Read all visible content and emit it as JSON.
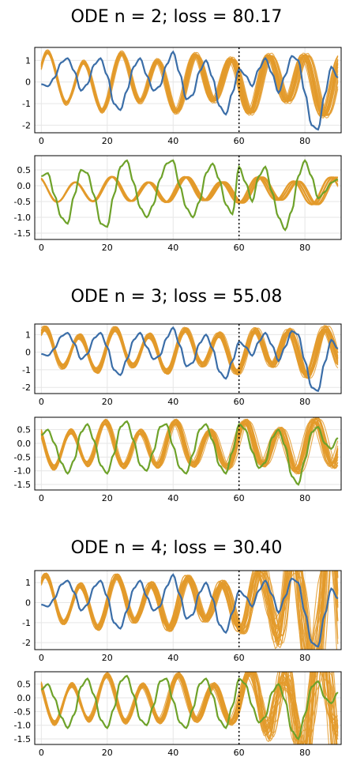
{
  "chart_data": [
    {
      "title": "ODE n = 2; loss = 80.17",
      "subplots": [
        {
          "type": "line",
          "xlim": [
            -2,
            91
          ],
          "ylim": [
            -2.35,
            1.6
          ],
          "xticks": [
            0,
            20,
            40,
            60,
            80
          ],
          "yticks": [
            -2,
            -1,
            0,
            1
          ],
          "vline": 60,
          "target": {
            "color": "#3b6ea8",
            "x": [
              0,
              2,
              4,
              6,
              8,
              10,
              12,
              14,
              16,
              18,
              20,
              22,
              24,
              26,
              28,
              30,
              32,
              34,
              36,
              38,
              40,
              42,
              44,
              46,
              48,
              50,
              52,
              54,
              56,
              58,
              60,
              62,
              64,
              66,
              68,
              70,
              72,
              74,
              76,
              78,
              80,
              82,
              84,
              86,
              88,
              90
            ],
            "y": [
              -0.1,
              -0.2,
              0.2,
              0.9,
              1.1,
              0.5,
              -0.4,
              -0.1,
              0.8,
              1.1,
              0.3,
              -1.0,
              -1.3,
              -0.4,
              0.7,
              1.1,
              0.3,
              -0.4,
              -0.2,
              0.8,
              1.4,
              0.4,
              -0.8,
              -0.6,
              0.5,
              1.0,
              0.2,
              -1.1,
              -1.5,
              -0.5,
              0.6,
              0.3,
              -0.2,
              0.6,
              1.1,
              0.4,
              -0.5,
              0.3,
              1.2,
              1.0,
              -0.5,
              -2.0,
              -2.2,
              -0.6,
              0.7,
              0.2
            ]
          },
          "predictions": {
            "color": "#e39a2a",
            "count": 25,
            "amplitude": 1.15,
            "period": 11.2,
            "phase": 0.55,
            "damping": 0.0,
            "offset": 0.0
          },
          "prediction_spread": 0.18
        },
        {
          "type": "line",
          "xlim": [
            -2,
            91
          ],
          "ylim": [
            -1.7,
            0.95
          ],
          "xticks": [
            0,
            20,
            40,
            60,
            80
          ],
          "yticks": [
            -1.5,
            -1.0,
            -0.5,
            0.0,
            0.5
          ],
          "vline": 60,
          "target": {
            "color": "#6ea22a",
            "x": [
              0,
              2,
              4,
              6,
              8,
              10,
              12,
              14,
              16,
              18,
              20,
              22,
              24,
              26,
              28,
              30,
              32,
              34,
              36,
              38,
              40,
              42,
              44,
              46,
              48,
              50,
              52,
              54,
              56,
              58,
              60,
              62,
              64,
              66,
              68,
              70,
              72,
              74,
              76,
              78,
              80,
              82,
              84,
              86,
              88,
              90
            ],
            "y": [
              0.3,
              0.4,
              -0.3,
              -1.0,
              -1.2,
              -0.3,
              0.5,
              0.4,
              -0.3,
              -1.2,
              -1.3,
              -0.3,
              0.6,
              0.8,
              0.1,
              -0.7,
              -1.0,
              -0.6,
              0.2,
              0.7,
              0.8,
              0.0,
              -0.7,
              -1.0,
              -0.5,
              0.4,
              0.7,
              0.2,
              -0.6,
              -0.9,
              0.6,
              0.1,
              -0.5,
              0.3,
              0.6,
              -0.2,
              -1.0,
              -1.4,
              -0.8,
              0.3,
              0.8,
              0.3,
              -0.4,
              -0.2,
              0.1,
              0.2
            ]
          },
          "predictions": {
            "color": "#e39a2a",
            "count": 25,
            "amplitude": 0.35,
            "period": 11.2,
            "phase": 2.1,
            "damping": 0.0,
            "offset": -0.15
          },
          "prediction_spread": 0.12
        }
      ]
    },
    {
      "title": "ODE n = 3; loss = 55.08",
      "subplots": [
        {
          "type": "line",
          "xlim": [
            -2,
            91
          ],
          "ylim": [
            -2.35,
            1.6
          ],
          "xticks": [
            0,
            20,
            40,
            60,
            80
          ],
          "yticks": [
            -2,
            -1,
            0,
            1
          ],
          "vline": 60,
          "target": {
            "color": "#3b6ea8",
            "x": [
              0,
              2,
              4,
              6,
              8,
              10,
              12,
              14,
              16,
              18,
              20,
              22,
              24,
              26,
              28,
              30,
              32,
              34,
              36,
              38,
              40,
              42,
              44,
              46,
              48,
              50,
              52,
              54,
              56,
              58,
              60,
              62,
              64,
              66,
              68,
              70,
              72,
              74,
              76,
              78,
              80,
              82,
              84,
              86,
              88,
              90
            ],
            "y": [
              -0.1,
              -0.2,
              0.2,
              0.9,
              1.1,
              0.5,
              -0.4,
              -0.1,
              0.8,
              1.1,
              0.3,
              -1.0,
              -1.3,
              -0.4,
              0.7,
              1.1,
              0.3,
              -0.4,
              -0.2,
              0.8,
              1.4,
              0.4,
              -0.8,
              -0.6,
              0.5,
              1.0,
              0.2,
              -1.1,
              -1.5,
              -0.5,
              0.6,
              0.3,
              -0.2,
              0.6,
              1.1,
              0.4,
              -0.5,
              0.3,
              1.2,
              1.0,
              -0.5,
              -2.0,
              -2.2,
              -0.6,
              0.7,
              0.2
            ]
          },
          "predictions": {
            "color": "#e39a2a",
            "count": 25,
            "amplitude": 1.0,
            "period": 10.6,
            "phase": 1.0,
            "damping": 0.0,
            "offset": 0.1
          },
          "prediction_spread": 0.35
        },
        {
          "type": "line",
          "xlim": [
            -2,
            91
          ],
          "ylim": [
            -1.7,
            0.95
          ],
          "xticks": [
            0,
            20,
            40,
            60,
            80
          ],
          "yticks": [
            -1.5,
            -1.0,
            -0.5,
            0.0,
            0.5
          ],
          "vline": 60,
          "target": {
            "color": "#6ea22a",
            "x": [
              0,
              2,
              4,
              6,
              8,
              10,
              12,
              14,
              16,
              18,
              20,
              22,
              24,
              26,
              28,
              30,
              32,
              34,
              36,
              38,
              40,
              42,
              44,
              46,
              48,
              50,
              52,
              54,
              56,
              58,
              60,
              62,
              64,
              66,
              68,
              70,
              72,
              74,
              76,
              78,
              80,
              82,
              84,
              86,
              88,
              90
            ],
            "y": [
              0.3,
              0.5,
              0.0,
              -0.7,
              -1.1,
              -0.6,
              0.4,
              0.7,
              0.1,
              -0.8,
              -1.1,
              -0.4,
              0.6,
              0.8,
              0.1,
              -0.8,
              -1.0,
              -0.3,
              0.6,
              0.7,
              -0.1,
              -0.9,
              -1.1,
              -0.4,
              0.5,
              0.7,
              0.1,
              -0.8,
              -1.1,
              -0.3,
              0.7,
              0.5,
              -0.3,
              -0.9,
              -0.7,
              0.2,
              0.5,
              -0.1,
              -1.2,
              -1.5,
              -0.6,
              0.4,
              0.6,
              0.0,
              -0.2,
              0.2
            ]
          },
          "predictions": {
            "color": "#e39a2a",
            "count": 25,
            "amplitude": 0.72,
            "period": 10.6,
            "phase": 2.6,
            "damping": 0.0,
            "offset": -0.1
          },
          "prediction_spread": 0.3
        }
      ]
    },
    {
      "title": "ODE n = 4; loss = 30.40",
      "subplots": [
        {
          "type": "line",
          "xlim": [
            -2,
            91
          ],
          "ylim": [
            -2.35,
            1.6
          ],
          "xticks": [
            0,
            20,
            40,
            60,
            80
          ],
          "yticks": [
            -2,
            -1,
            0,
            1
          ],
          "vline": 60,
          "target": {
            "color": "#3b6ea8",
            "x": [
              0,
              2,
              4,
              6,
              8,
              10,
              12,
              14,
              16,
              18,
              20,
              22,
              24,
              26,
              28,
              30,
              32,
              34,
              36,
              38,
              40,
              42,
              44,
              46,
              48,
              50,
              52,
              54,
              56,
              58,
              60,
              62,
              64,
              66,
              68,
              70,
              72,
              74,
              76,
              78,
              80,
              82,
              84,
              86,
              88,
              90
            ],
            "y": [
              -0.1,
              -0.2,
              0.2,
              0.9,
              1.1,
              0.5,
              -0.4,
              -0.1,
              0.8,
              1.1,
              0.3,
              -1.0,
              -1.3,
              -0.4,
              0.7,
              1.1,
              0.3,
              -0.4,
              -0.2,
              0.8,
              1.4,
              0.4,
              -0.8,
              -0.6,
              0.5,
              1.0,
              0.2,
              -1.1,
              -1.5,
              -0.5,
              0.6,
              0.3,
              -0.2,
              0.6,
              1.1,
              0.4,
              -0.5,
              0.3,
              1.2,
              1.0,
              -0.5,
              -2.0,
              -2.2,
              -0.6,
              0.7,
              0.2
            ]
          },
          "predictions": {
            "color": "#e39a2a",
            "count": 25,
            "amplitude": 1.1,
            "period": 10.8,
            "phase": 0.9,
            "damping": 0.0,
            "offset": 0.0
          },
          "prediction_spread": 0.25,
          "divergence_after": 60,
          "divergence_growth": 4.5
        },
        {
          "type": "line",
          "xlim": [
            -2,
            91
          ],
          "ylim": [
            -1.7,
            0.95
          ],
          "xticks": [
            0,
            20,
            40,
            60,
            80
          ],
          "yticks": [
            -1.5,
            -1.0,
            -0.5,
            0.0,
            0.5
          ],
          "vline": 60,
          "target": {
            "color": "#6ea22a",
            "x": [
              0,
              2,
              4,
              6,
              8,
              10,
              12,
              14,
              16,
              18,
              20,
              22,
              24,
              26,
              28,
              30,
              32,
              34,
              36,
              38,
              40,
              42,
              44,
              46,
              48,
              50,
              52,
              54,
              56,
              58,
              60,
              62,
              64,
              66,
              68,
              70,
              72,
              74,
              76,
              78,
              80,
              82,
              84,
              86,
              88,
              90
            ],
            "y": [
              0.3,
              0.5,
              0.0,
              -0.7,
              -1.1,
              -0.6,
              0.4,
              0.7,
              0.1,
              -0.8,
              -1.1,
              -0.4,
              0.6,
              0.8,
              0.1,
              -0.8,
              -1.0,
              -0.3,
              0.6,
              0.7,
              -0.1,
              -0.9,
              -1.1,
              -0.4,
              0.5,
              0.7,
              0.1,
              -0.8,
              -1.1,
              -0.3,
              0.7,
              0.5,
              -0.3,
              -0.9,
              -0.7,
              0.2,
              0.5,
              -0.1,
              -1.2,
              -1.5,
              -0.6,
              0.4,
              0.6,
              0.0,
              -0.2,
              0.2
            ]
          },
          "predictions": {
            "color": "#e39a2a",
            "count": 25,
            "amplitude": 0.75,
            "period": 10.8,
            "phase": 2.5,
            "damping": 0.0,
            "offset": -0.1
          },
          "prediction_spread": 0.25,
          "divergence_after": 60,
          "divergence_growth": 3.5
        }
      ]
    }
  ]
}
